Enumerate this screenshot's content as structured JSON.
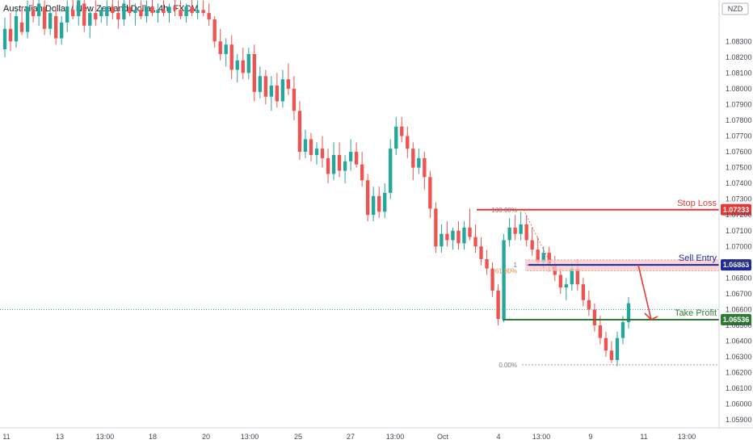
{
  "header": {
    "title": "Australian Dollar / New Zealand Dollar, 4h, FXCM",
    "currency": "NZD"
  },
  "colors": {
    "up": "#26a69a",
    "down": "#ef5350",
    "stop_loss": "#e53935",
    "entry": "#1e2a9a",
    "take_profit": "#2e7d32",
    "zone": "#f8c8cc",
    "fib": "#787b86",
    "arrow": "#e53935"
  },
  "chart_data": {
    "type": "candlestick",
    "y_axis": {
      "range": [
        1.0585,
        1.0845
      ],
      "ticks": [
        "1.08300",
        "1.08200",
        "1.08100",
        "1.08000",
        "1.07900",
        "1.07800",
        "1.07700",
        "1.07600",
        "1.07500",
        "1.07400",
        "1.07300",
        "1.07200",
        "1.07100",
        "1.07000",
        "1.06900",
        "1.06800",
        "1.06700",
        "1.06600",
        "1.06500",
        "1.06400",
        "1.06300",
        "1.06200",
        "1.06100",
        "1.06000",
        "1.05900"
      ]
    },
    "x_axis": {
      "ticks": [
        "11",
        "13",
        "13:00",
        "18",
        "20",
        "13:00",
        "25",
        "27",
        "13:00",
        "Oct",
        "4",
        "13:00",
        "9",
        "11",
        "13:00"
      ]
    },
    "candles": [
      [
        1.0825,
        1.0845,
        1.082,
        1.0838
      ],
      [
        1.0838,
        1.0848,
        1.0824,
        1.083
      ],
      [
        1.083,
        1.085,
        1.0826,
        1.0846
      ],
      [
        1.0842,
        1.0852,
        1.0834,
        1.0836
      ],
      [
        1.0836,
        1.0856,
        1.0832,
        1.0852
      ],
      [
        1.085,
        1.086,
        1.0842,
        1.0846
      ],
      [
        1.0846,
        1.0858,
        1.084,
        1.0854
      ],
      [
        1.0852,
        1.0856,
        1.0834,
        1.0838
      ],
      [
        1.0838,
        1.0852,
        1.0834,
        1.0848
      ],
      [
        1.0846,
        1.0852,
        1.0828,
        1.0832
      ],
      [
        1.0832,
        1.0846,
        1.0828,
        1.0842
      ],
      [
        1.0842,
        1.0856,
        1.0836,
        1.0852
      ],
      [
        1.085,
        1.0858,
        1.0844,
        1.0846
      ],
      [
        1.0846,
        1.086,
        1.084,
        1.0856
      ],
      [
        1.0854,
        1.0858,
        1.0836,
        1.084
      ],
      [
        1.084,
        1.0852,
        1.0832,
        1.0848
      ],
      [
        1.0848,
        1.0856,
        1.084,
        1.0844
      ],
      [
        1.0846,
        1.0852,
        1.0842,
        1.085
      ],
      [
        1.0846,
        1.0856,
        1.084,
        1.0852
      ],
      [
        1.0852,
        1.0858,
        1.0844,
        1.0848
      ],
      [
        1.0848,
        1.0856,
        1.0838,
        1.0844
      ],
      [
        1.0844,
        1.0858,
        1.084,
        1.0854
      ],
      [
        1.0852,
        1.0858,
        1.0846,
        1.0848
      ],
      [
        1.0848,
        1.0854,
        1.084,
        1.085
      ],
      [
        1.085,
        1.0856,
        1.0844,
        1.0846
      ],
      [
        1.0846,
        1.0856,
        1.0842,
        1.0852
      ],
      [
        1.0852,
        1.0858,
        1.0846,
        1.0848
      ],
      [
        1.0848,
        1.0854,
        1.0842,
        1.085
      ],
      [
        1.085,
        1.0856,
        1.0846,
        1.0848
      ],
      [
        1.0848,
        1.0854,
        1.0842,
        1.0852
      ],
      [
        1.0852,
        1.0858,
        1.0846,
        1.085
      ],
      [
        1.085,
        1.0856,
        1.0844,
        1.0846
      ],
      [
        1.0846,
        1.0854,
        1.0842,
        1.0852
      ],
      [
        1.0852,
        1.0858,
        1.0846,
        1.0848
      ],
      [
        1.0848,
        1.0856,
        1.0844,
        1.085
      ],
      [
        1.085,
        1.0856,
        1.0846,
        1.0848
      ],
      [
        1.0848,
        1.0854,
        1.084,
        1.0844
      ],
      [
        1.0844,
        1.0846,
        1.0826,
        1.083
      ],
      [
        1.083,
        1.0838,
        1.0818,
        1.0822
      ],
      [
        1.0822,
        1.0832,
        1.0814,
        1.0828
      ],
      [
        1.0828,
        1.0834,
        1.0806,
        1.0812
      ],
      [
        1.0812,
        1.0822,
        1.0804,
        1.0818
      ],
      [
        1.0818,
        1.0826,
        1.0806,
        1.081
      ],
      [
        1.081,
        1.0826,
        1.0806,
        1.0822
      ],
      [
        1.0822,
        1.0828,
        1.0792,
        1.0798
      ],
      [
        1.0798,
        1.0814,
        1.0794,
        1.0808
      ],
      [
        1.0808,
        1.0812,
        1.079,
        1.0795
      ],
      [
        1.0795,
        1.0808,
        1.0786,
        1.0802
      ],
      [
        1.0802,
        1.081,
        1.0788,
        1.0792
      ],
      [
        1.0792,
        1.0812,
        1.0788,
        1.0806
      ],
      [
        1.0806,
        1.0816,
        1.0796,
        1.08
      ],
      [
        1.08,
        1.0808,
        1.078,
        1.0786
      ],
      [
        1.0786,
        1.0792,
        1.0755,
        1.076
      ],
      [
        1.076,
        1.0774,
        1.0756,
        1.0768
      ],
      [
        1.0768,
        1.0772,
        1.0754,
        1.0758
      ],
      [
        1.0758,
        1.0766,
        1.0752,
        1.0762
      ],
      [
        1.0762,
        1.077,
        1.075,
        1.0756
      ],
      [
        1.0756,
        1.0762,
        1.074,
        1.0746
      ],
      [
        1.0746,
        1.0766,
        1.0742,
        1.0758
      ],
      [
        1.0758,
        1.0766,
        1.0744,
        1.0748
      ],
      [
        1.0748,
        1.0758,
        1.074,
        1.0754
      ],
      [
        1.0754,
        1.0768,
        1.0748,
        1.076
      ],
      [
        1.076,
        1.0766,
        1.075,
        1.0752
      ],
      [
        1.0752,
        1.076,
        1.0738,
        1.0742
      ],
      [
        1.0742,
        1.0746,
        1.0716,
        1.072
      ],
      [
        1.072,
        1.0738,
        1.0716,
        1.0732
      ],
      [
        1.0732,
        1.0738,
        1.0718,
        1.0722
      ],
      [
        1.0722,
        1.074,
        1.0718,
        1.0734
      ],
      [
        1.0734,
        1.0768,
        1.073,
        1.0762
      ],
      [
        1.0762,
        1.0782,
        1.0758,
        1.0776
      ],
      [
        1.0776,
        1.0782,
        1.0766,
        1.077
      ],
      [
        1.077,
        1.0776,
        1.0756,
        1.0762
      ],
      [
        1.0762,
        1.0766,
        1.0742,
        1.075
      ],
      [
        1.075,
        1.0762,
        1.0746,
        1.0756
      ],
      [
        1.0756,
        1.076,
        1.0736,
        1.0744
      ],
      [
        1.0744,
        1.0748,
        1.0718,
        1.0724
      ],
      [
        1.0724,
        1.0728,
        1.0696,
        1.07
      ],
      [
        1.07,
        1.0714,
        1.0696,
        1.0708
      ],
      [
        1.0708,
        1.0716,
        1.07,
        1.0704
      ],
      [
        1.0704,
        1.0712,
        1.0698,
        1.071
      ],
      [
        1.071,
        1.0716,
        1.0698,
        1.0702
      ],
      [
        1.0702,
        1.0716,
        1.0698,
        1.0712
      ],
      [
        1.0712,
        1.0724,
        1.0704,
        1.0706
      ],
      [
        1.0706,
        1.0714,
        1.0696,
        1.07
      ],
      [
        1.07,
        1.0706,
        1.0688,
        1.0692
      ],
      [
        1.0692,
        1.0698,
        1.0682,
        1.0686
      ],
      [
        1.0686,
        1.069,
        1.0668,
        1.0672
      ],
      [
        1.0672,
        1.0676,
        1.065,
        1.0654
      ],
      [
        1.0654,
        1.0708,
        1.0652,
        1.0704
      ],
      [
        1.0704,
        1.0718,
        1.07,
        1.0712
      ],
      [
        1.0712,
        1.072,
        1.0704,
        1.0708
      ],
      [
        1.0708,
        1.0722,
        1.0704,
        1.0714
      ],
      [
        1.0714,
        1.072,
        1.07,
        1.0704
      ],
      [
        1.0704,
        1.0712,
        1.0694,
        1.0698
      ],
      [
        1.0698,
        1.0706,
        1.0688,
        1.069
      ],
      [
        1.069,
        1.07,
        1.0686,
        1.0696
      ],
      [
        1.0696,
        1.07,
        1.0684,
        1.0688
      ],
      [
        1.0688,
        1.0694,
        1.0678,
        1.0682
      ],
      [
        1.0682,
        1.0686,
        1.067,
        1.0674
      ],
      [
        1.0674,
        1.068,
        1.0666,
        1.0676
      ],
      [
        1.0676,
        1.069,
        1.0672,
        1.0686
      ],
      [
        1.0686,
        1.0692,
        1.0672,
        1.0676
      ],
      [
        1.0676,
        1.068,
        1.0662,
        1.0666
      ],
      [
        1.0666,
        1.0672,
        1.0656,
        1.066
      ],
      [
        1.066,
        1.0664,
        1.0646,
        1.065
      ],
      [
        1.065,
        1.0656,
        1.0638,
        1.0642
      ],
      [
        1.0642,
        1.0646,
        1.063,
        1.0634
      ],
      [
        1.0634,
        1.064,
        1.0626,
        1.0628
      ],
      [
        1.0628,
        1.0646,
        1.0624,
        1.0642
      ],
      [
        1.0642,
        1.0656,
        1.0638,
        1.0652
      ],
      [
        1.0652,
        1.0668,
        1.0648,
        1.0664
      ]
    ],
    "fib_levels": [
      {
        "label": "100.00%",
        "value": 1.07233
      },
      {
        "label": "1",
        "value": 1.06883
      },
      {
        "label": "61.80%",
        "value": 1.06845
      },
      {
        "label": "0.00%",
        "value": 1.0625
      }
    ],
    "trade_levels": [
      {
        "name": "Stop Loss",
        "value": 1.07233,
        "badge": "1.07233"
      },
      {
        "name": "Sell Entry",
        "value": 1.06883,
        "badge": "1.06883"
      },
      {
        "name": "Take Profit",
        "value": 1.06536,
        "badge": "1.06536"
      }
    ],
    "current_price_line": 1.066
  }
}
